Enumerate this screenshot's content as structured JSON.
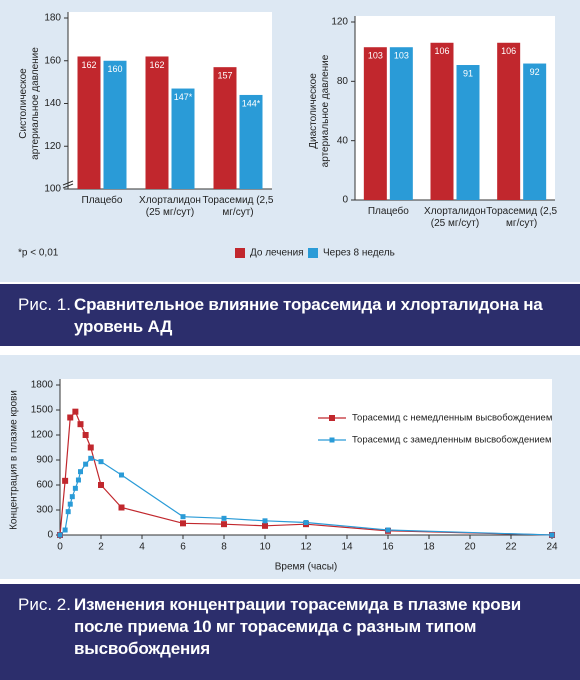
{
  "chart_data": [
    {
      "type": "bar",
      "ylabel": "Систолическое артериальное давление",
      "categories": [
        "Плацебо",
        "Хлорталидон (25 мг/сут)",
        "Торасемид (2,5 мг/сут)"
      ],
      "series": [
        {
          "name": "До лечения",
          "color": "#c1272d",
          "values": [
            162,
            162,
            157
          ]
        },
        {
          "name": "Через 8 недель",
          "color": "#2a9bd7",
          "values": [
            160,
            147,
            144
          ],
          "value_labels": [
            "160",
            "147*",
            "144*"
          ]
        }
      ],
      "ylim": [
        100,
        180
      ],
      "yticks": [
        100,
        120,
        140,
        160,
        180
      ],
      "y_axis_break": true,
      "note": "*р < 0,01"
    },
    {
      "type": "bar",
      "ylabel": "Диастолическое артериальное давление",
      "categories": [
        "Плацебо",
        "Хлорталидон (25 мг/сут)",
        "Торасемид (2,5 мг/сут)"
      ],
      "series": [
        {
          "color": "#c1272d",
          "values": [
            103,
            106,
            106
          ]
        },
        {
          "color": "#2a9bd7",
          "values": [
            103,
            91,
            92
          ]
        }
      ],
      "ylim": [
        0,
        120
      ],
      "yticks": [
        0,
        40,
        80,
        120
      ]
    },
    {
      "type": "line",
      "xlabel": "Время (часы)",
      "ylabel": "Концентрация в плазме крови",
      "series": [
        {
          "name": "Торасемид с немедленным высвобождением",
          "color": "#c1272d",
          "x": [
            0,
            0.25,
            0.5,
            0.75,
            1,
            1.25,
            1.5,
            2,
            3,
            6,
            8,
            10,
            12,
            16,
            24
          ],
          "values": [
            0,
            650,
            1410,
            1480,
            1330,
            1200,
            1050,
            600,
            330,
            140,
            130,
            110,
            130,
            50,
            0
          ]
        },
        {
          "name": "Торасемид с замедленным высвобождением",
          "color": "#2a9bd7",
          "x": [
            0,
            0.25,
            0.4,
            0.5,
            0.6,
            0.75,
            0.9,
            1,
            1.25,
            1.5,
            2,
            3,
            6,
            8,
            10,
            12,
            16,
            24
          ],
          "values": [
            0,
            60,
            280,
            370,
            460,
            560,
            660,
            760,
            850,
            920,
            880,
            720,
            220,
            200,
            170,
            150,
            60,
            0
          ]
        }
      ],
      "xlim": [
        0,
        24
      ],
      "xticks": [
        0,
        2,
        4,
        6,
        8,
        10,
        12,
        14,
        16,
        18,
        20,
        22,
        24
      ],
      "ylim": [
        0,
        1800
      ],
      "yticks": [
        0,
        300,
        600,
        900,
        1200,
        1500,
        1800
      ],
      "legend": "upper right"
    }
  ],
  "figures": [
    {
      "label": "Рис. 1.",
      "caption": "Сравнительное влияние торасемида и хлорталидона на уровень АД"
    },
    {
      "label": "Рис. 2.",
      "caption": "Изменения концентрации торасемида в плазме крови после приема 10 мг торасемида с разным типом высвобождения"
    }
  ]
}
